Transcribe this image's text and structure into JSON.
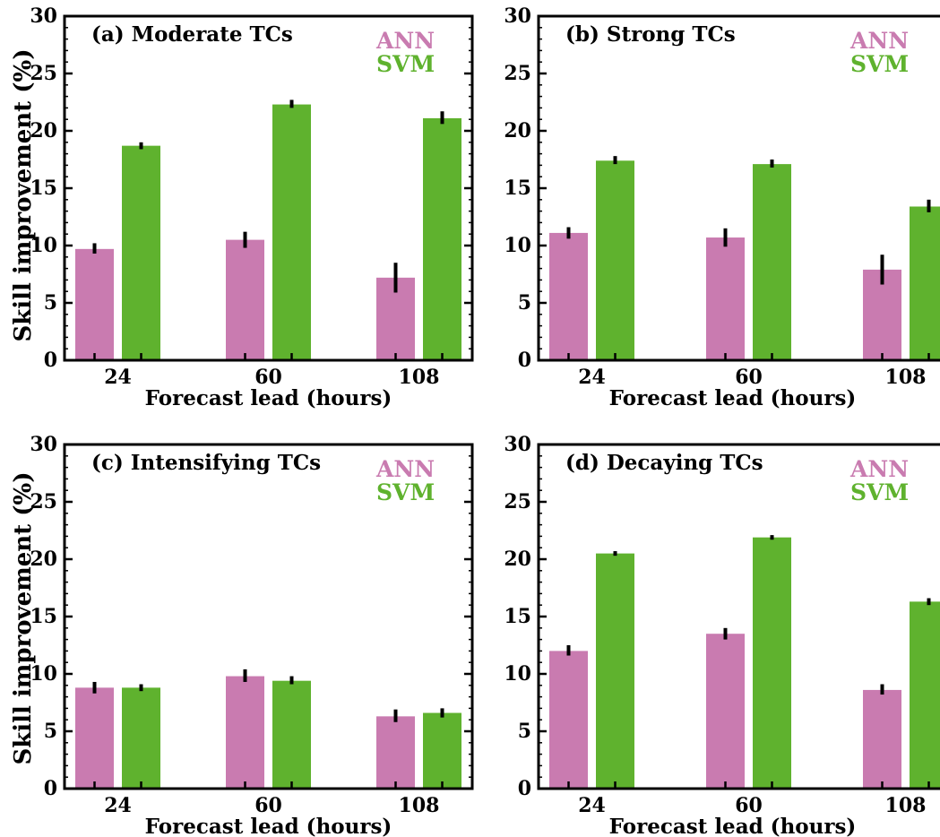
{
  "figure": {
    "ylabel": "Skill improvement (%)",
    "xlabel": "Forecast lead (hours)"
  },
  "chart_data": [
    {
      "type": "bar",
      "title": "(a) Moderate TCs",
      "categories": [
        "24",
        "60",
        "108"
      ],
      "xlabel": "Forecast lead (hours)",
      "ylabel": "Skill improvement (%)",
      "ylim": [
        0,
        30
      ],
      "yticks": [
        0,
        5,
        10,
        15,
        20,
        25,
        30
      ],
      "legend_position": "top-right",
      "series": [
        {
          "name": "ANN",
          "color": "#c97bb0",
          "values": [
            9.7,
            10.5,
            7.2
          ],
          "err_low": [
            9.3,
            9.8,
            5.9
          ],
          "err_high": [
            10.2,
            11.2,
            8.5
          ]
        },
        {
          "name": "SVM",
          "color": "#5fb22e",
          "values": [
            18.7,
            22.3,
            21.1
          ],
          "err_low": [
            18.4,
            22.0,
            20.6
          ],
          "err_high": [
            19.0,
            22.7,
            21.7
          ]
        }
      ]
    },
    {
      "type": "bar",
      "title": "(b)  Strong TCs",
      "categories": [
        "24",
        "60",
        "108"
      ],
      "xlabel": "Forecast lead (hours)",
      "ylabel": "",
      "ylim": [
        0,
        30
      ],
      "yticks": [
        0,
        5,
        10,
        15,
        20,
        25,
        30
      ],
      "legend_position": "top-right",
      "series": [
        {
          "name": "ANN",
          "color": "#c97bb0",
          "values": [
            11.1,
            10.7,
            7.9
          ],
          "err_low": [
            10.6,
            9.9,
            6.6
          ],
          "err_high": [
            11.6,
            11.5,
            9.2
          ]
        },
        {
          "name": "SVM",
          "color": "#5fb22e",
          "values": [
            17.4,
            17.1,
            13.4
          ],
          "err_low": [
            17.1,
            16.8,
            12.9
          ],
          "err_high": [
            17.8,
            17.5,
            14.0
          ]
        }
      ]
    },
    {
      "type": "bar",
      "title": "(c) Intensifying TCs",
      "categories": [
        "24",
        "60",
        "108"
      ],
      "xlabel": "Forecast lead (hours)",
      "ylabel": "Skill improvement (%)",
      "ylim": [
        0,
        30
      ],
      "yticks": [
        0,
        5,
        10,
        15,
        20,
        25,
        30
      ],
      "legend_position": "top-right",
      "series": [
        {
          "name": "ANN",
          "color": "#c97bb0",
          "values": [
            8.8,
            9.8,
            6.3
          ],
          "err_low": [
            8.3,
            9.3,
            5.8
          ],
          "err_high": [
            9.3,
            10.4,
            6.9
          ]
        },
        {
          "name": "SVM",
          "color": "#5fb22e",
          "values": [
            8.8,
            9.4,
            6.6
          ],
          "err_low": [
            8.5,
            9.1,
            6.2
          ],
          "err_high": [
            9.1,
            9.8,
            7.0
          ]
        }
      ]
    },
    {
      "type": "bar",
      "title": "(d)  Decaying TCs",
      "categories": [
        "24",
        "60",
        "108"
      ],
      "xlabel": "Forecast lead (hours)",
      "ylabel": "",
      "ylim": [
        0,
        30
      ],
      "yticks": [
        0,
        5,
        10,
        15,
        20,
        25,
        30
      ],
      "legend_position": "top-right",
      "series": [
        {
          "name": "ANN",
          "color": "#c97bb0",
          "values": [
            12.0,
            13.5,
            8.6
          ],
          "err_low": [
            11.6,
            13.0,
            8.2
          ],
          "err_high": [
            12.5,
            14.0,
            9.1
          ]
        },
        {
          "name": "SVM",
          "color": "#5fb22e",
          "values": [
            20.5,
            21.9,
            16.3
          ],
          "err_low": [
            20.3,
            21.7,
            16.0
          ],
          "err_high": [
            20.7,
            22.1,
            16.6
          ]
        }
      ]
    }
  ]
}
